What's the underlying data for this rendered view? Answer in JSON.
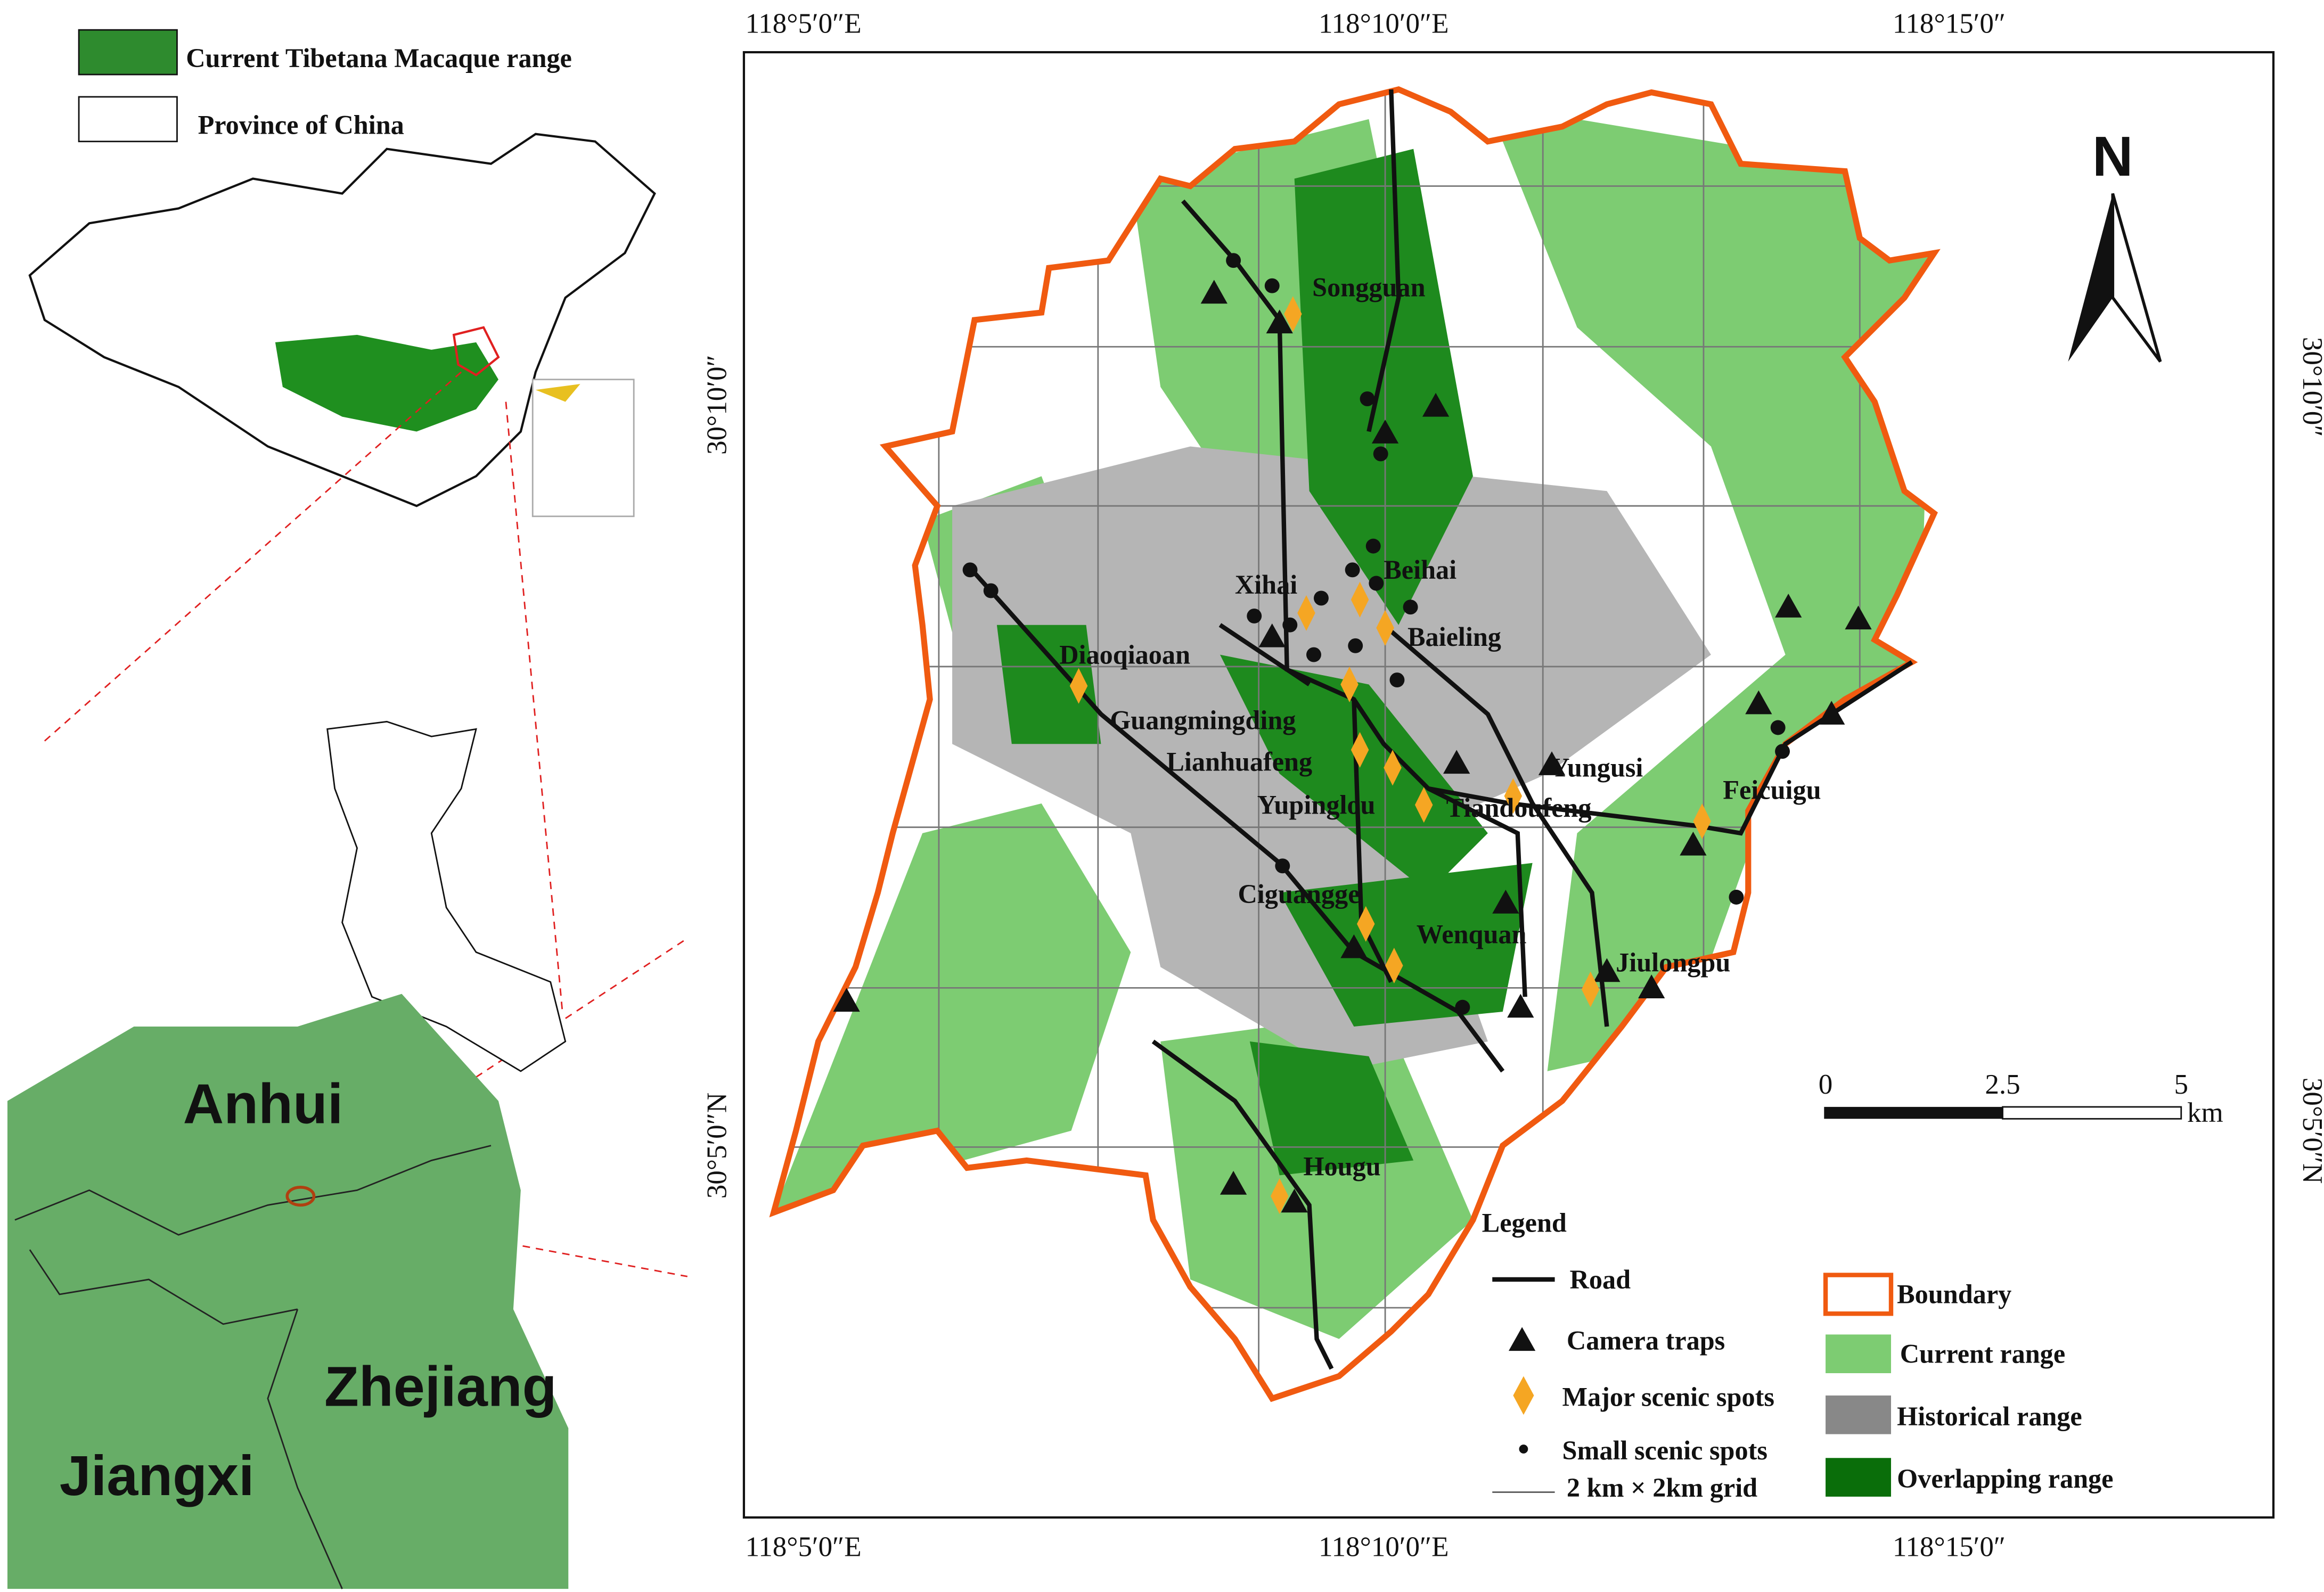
{
  "inset_legend": {
    "items": [
      "Current Tibetana Macaque range",
      "Province of China"
    ]
  },
  "regions": [
    "Anhui",
    "Zhejiang",
    "Jiangxi"
  ],
  "axes": {
    "top": [
      "118°5′0″E",
      "118°10′0″E",
      "118°15′0″"
    ],
    "bottom": [
      "118°5′0″E",
      "118°10′0″E",
      "118°15′0″"
    ],
    "left": [
      "30°10′0″",
      "30°5′0″N"
    ],
    "right": [
      "30°10′0″",
      "30°5′0″N"
    ]
  },
  "north": "N",
  "scale_bar": {
    "labels": [
      "0",
      "2.5",
      "5"
    ],
    "unit": "km"
  },
  "places": [
    "Songguan",
    "Beihai",
    "Xihai",
    "Baieling",
    "Diaoqiaoan",
    "Guangmingding",
    "Lianhuafeng",
    "Yungusi",
    "Feicuigu",
    "Yupinglou",
    "Tiandoufeng",
    "Ciguangge",
    "Wenquan",
    "Jiulongpu",
    "Hougu"
  ],
  "legend": {
    "title": "Legend",
    "items": [
      "Road",
      "Camera traps",
      "Major scenic spots",
      "Small scenic spots",
      "2 km × 2km grid",
      "Boundary",
      "Current range",
      "Historical  range",
      "Overlapping range"
    ]
  }
}
